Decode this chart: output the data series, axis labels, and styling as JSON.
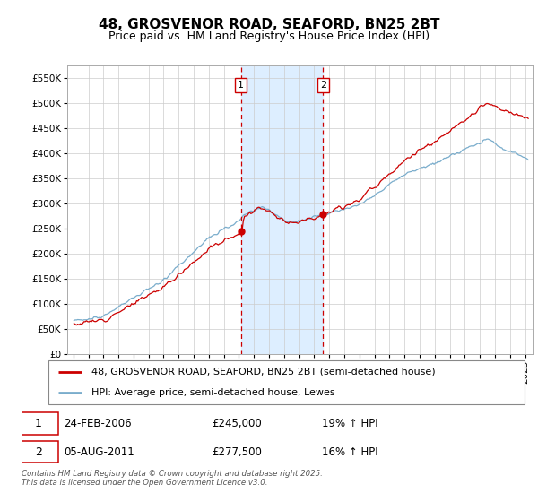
{
  "title": "48, GROSVENOR ROAD, SEAFORD, BN25 2BT",
  "subtitle": "Price paid vs. HM Land Registry's House Price Index (HPI)",
  "ylim": [
    0,
    575000
  ],
  "yticks": [
    0,
    50000,
    100000,
    150000,
    200000,
    250000,
    300000,
    350000,
    400000,
    450000,
    500000,
    550000
  ],
  "ytick_labels": [
    "£0",
    "£50K",
    "£100K",
    "£150K",
    "£200K",
    "£250K",
    "£300K",
    "£350K",
    "£400K",
    "£450K",
    "£500K",
    "£550K"
  ],
  "legend_line1": "48, GROSVENOR ROAD, SEAFORD, BN25 2BT (semi-detached house)",
  "legend_line2": "HPI: Average price, semi-detached house, Lewes",
  "marker1_label": "1",
  "marker1_date": "24-FEB-2006",
  "marker1_price": 245000,
  "marker1_hpi": "19% ↑ HPI",
  "marker1_year": 2006.13,
  "marker2_label": "2",
  "marker2_date": "05-AUG-2011",
  "marker2_price": 277500,
  "marker2_hpi": "16% ↑ HPI",
  "marker2_year": 2011.58,
  "copyright": "Contains HM Land Registry data © Crown copyright and database right 2025.\nThis data is licensed under the Open Government Licence v3.0.",
  "line_color_red": "#cc0000",
  "line_color_blue": "#7aadcc",
  "shade_color": "#ddeeff",
  "marker_box_color": "#cc0000",
  "vline_color": "#cc0000",
  "grid_color": "#cccccc",
  "title_fontsize": 11,
  "subtitle_fontsize": 9,
  "tick_fontsize": 7.5,
  "legend_fontsize": 8,
  "annotation_fontsize": 8.5
}
